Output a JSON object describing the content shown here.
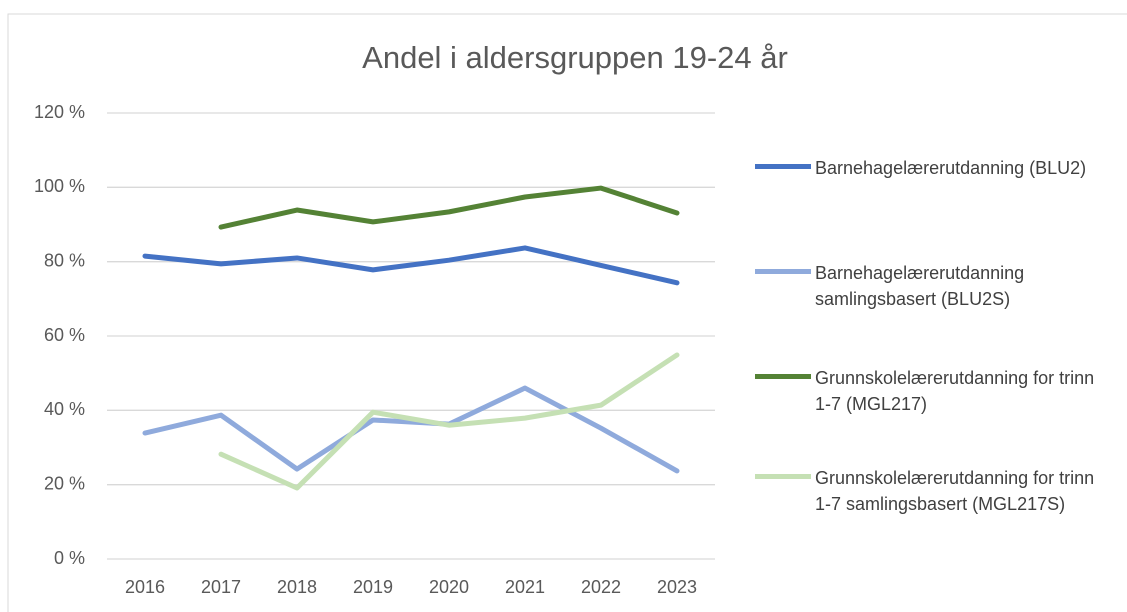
{
  "chart_data": {
    "type": "line",
    "title": "Andel i aldersgruppen 19-24 år",
    "categories": [
      "2016",
      "2017",
      "2018",
      "2019",
      "2020",
      "2021",
      "2022",
      "2023"
    ],
    "series": [
      {
        "name": "Barnehagelærerutdanning (BLU2)",
        "color": "#4472c4",
        "values": [
          81.5,
          79.4,
          81,
          77.8,
          80.4,
          83.7,
          79,
          74.3
        ]
      },
      {
        "name": "Barnehagelærerutdanning samlingsbasert (BLU2S)",
        "color": "#8faadc",
        "values": [
          33.9,
          38.7,
          24.2,
          37.4,
          36.3,
          46,
          35.2,
          23.7
        ]
      },
      {
        "name": "Grunnskolelærerutdanning for trinn 1-7 (MGL217)",
        "color": "#548235",
        "values": [
          null,
          89.3,
          93.9,
          90.7,
          93.4,
          97.4,
          99.8,
          93.1
        ]
      },
      {
        "name": "Grunnskolelærerutdanning for trinn 1-7 samlingsbasert (MGL217S)",
        "color": "#c5e0b4",
        "values": [
          null,
          28.2,
          19.1,
          39.5,
          36,
          37.9,
          41.4,
          54.9
        ]
      }
    ],
    "ylim": [
      0,
      120
    ],
    "yticks": [
      {
        "value": 0,
        "label": "0 %"
      },
      {
        "value": 20,
        "label": "20 %"
      },
      {
        "value": 40,
        "label": "40 %"
      },
      {
        "value": 60,
        "label": "60 %"
      },
      {
        "value": 80,
        "label": "80 %"
      },
      {
        "value": 100,
        "label": "100 %"
      },
      {
        "value": 120,
        "label": "120 %"
      }
    ],
    "grid": true,
    "legend": "right"
  }
}
